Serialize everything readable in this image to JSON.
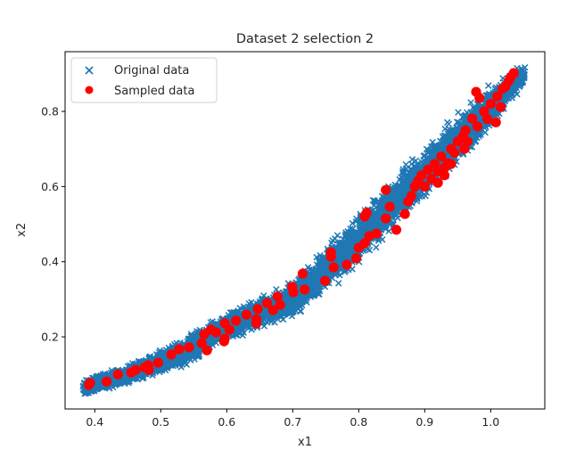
{
  "chart_data": {
    "type": "scatter",
    "title": "Dataset 2 selection 2",
    "xlabel": "x1",
    "ylabel": "x2",
    "xlim": [
      0.355,
      1.082
    ],
    "ylim": [
      0.008,
      0.959
    ],
    "x_ticks": [
      0.4,
      0.5,
      0.6,
      0.7,
      0.8,
      0.9,
      1.0
    ],
    "x_tick_labels": [
      "0.4",
      "0.5",
      "0.6",
      "0.7",
      "0.8",
      "0.9",
      "1.0"
    ],
    "y_ticks": [
      0.2,
      0.4,
      0.6,
      0.8
    ],
    "y_tick_labels": [
      "0.2",
      "0.4",
      "0.6",
      "0.8"
    ],
    "grid": false,
    "legend": {
      "position": "upper left",
      "entries": [
        {
          "label": "Original data",
          "marker": "x",
          "color": "#1f77b4"
        },
        {
          "label": "Sampled data",
          "marker": "o",
          "color": "#ff0000"
        }
      ]
    },
    "series": [
      {
        "name": "Original data",
        "marker": "x",
        "color": "#1f77b4",
        "description": "Dense curved band of thousands of points from x1≈0.38 to x1≈1.055; band center follows approximately these points",
        "band_center": [
          {
            "x1": 0.385,
            "x2": 0.065
          },
          {
            "x1": 0.45,
            "x2": 0.1
          },
          {
            "x1": 0.53,
            "x2": 0.153
          },
          {
            "x1": 0.6,
            "x2": 0.228
          },
          {
            "x1": 0.7,
            "x2": 0.3
          },
          {
            "x1": 0.8,
            "x2": 0.46
          },
          {
            "x1": 0.9,
            "x2": 0.64
          },
          {
            "x1": 1.0,
            "x2": 0.81
          },
          {
            "x1": 1.05,
            "x2": 0.9
          }
        ],
        "band_halfwidth_x2": [
          0.024,
          0.03,
          0.044,
          0.04,
          0.056,
          0.077,
          0.08,
          0.071,
          0.03
        ]
      },
      {
        "name": "Sampled data",
        "marker": "o",
        "color": "#ff0000",
        "points": [
          [
            0.393,
            0.077
          ],
          [
            0.391,
            0.072
          ],
          [
            0.418,
            0.081
          ],
          [
            0.435,
            0.1
          ],
          [
            0.455,
            0.105
          ],
          [
            0.462,
            0.112
          ],
          [
            0.476,
            0.119
          ],
          [
            0.482,
            0.112
          ],
          [
            0.481,
            0.124
          ],
          [
            0.496,
            0.131
          ],
          [
            0.516,
            0.153
          ],
          [
            0.528,
            0.167
          ],
          [
            0.543,
            0.172
          ],
          [
            0.562,
            0.183
          ],
          [
            0.57,
            0.164
          ],
          [
            0.566,
            0.207
          ],
          [
            0.576,
            0.219
          ],
          [
            0.584,
            0.212
          ],
          [
            0.596,
            0.188
          ],
          [
            0.597,
            0.195
          ],
          [
            0.597,
            0.236
          ],
          [
            0.604,
            0.219
          ],
          [
            0.614,
            0.243
          ],
          [
            0.63,
            0.259
          ],
          [
            0.645,
            0.247
          ],
          [
            0.645,
            0.236
          ],
          [
            0.647,
            0.274
          ],
          [
            0.661,
            0.29
          ],
          [
            0.67,
            0.271
          ],
          [
            0.677,
            0.307
          ],
          [
            0.681,
            0.285
          ],
          [
            0.699,
            0.333
          ],
          [
            0.701,
            0.319
          ],
          [
            0.715,
            0.368
          ],
          [
            0.718,
            0.326
          ],
          [
            0.749,
            0.349
          ],
          [
            0.758,
            0.425
          ],
          [
            0.758,
            0.413
          ],
          [
            0.762,
            0.385
          ],
          [
            0.782,
            0.392
          ],
          [
            0.796,
            0.409
          ],
          [
            0.8,
            0.437
          ],
          [
            0.809,
            0.449
          ],
          [
            0.816,
            0.468
          ],
          [
            0.809,
            0.52
          ],
          [
            0.812,
            0.53
          ],
          [
            0.827,
            0.475
          ],
          [
            0.841,
            0.591
          ],
          [
            0.847,
            0.546
          ],
          [
            0.841,
            0.515
          ],
          [
            0.857,
            0.485
          ],
          [
            0.87,
            0.527
          ],
          [
            0.875,
            0.56
          ],
          [
            0.88,
            0.575
          ],
          [
            0.885,
            0.6
          ],
          [
            0.89,
            0.615
          ],
          [
            0.895,
            0.63
          ],
          [
            0.9,
            0.6
          ],
          [
            0.905,
            0.645
          ],
          [
            0.91,
            0.62
          ],
          [
            0.915,
            0.66
          ],
          [
            0.92,
            0.64
          ],
          [
            0.925,
            0.68
          ],
          [
            0.93,
            0.65
          ],
          [
            0.935,
            0.662
          ],
          [
            0.94,
            0.7
          ],
          [
            0.945,
            0.69
          ],
          [
            0.95,
            0.72
          ],
          [
            0.958,
            0.734
          ],
          [
            0.962,
            0.75
          ],
          [
            0.972,
            0.781
          ],
          [
            0.978,
            0.852
          ],
          [
            0.983,
            0.836
          ],
          [
            0.99,
            0.8
          ],
          [
            0.995,
            0.78
          ],
          [
            1.0,
            0.82
          ],
          [
            1.008,
            0.771
          ],
          [
            1.01,
            0.84
          ],
          [
            1.015,
            0.812
          ],
          [
            1.018,
            0.86
          ],
          [
            1.022,
            0.866
          ],
          [
            1.027,
            0.88
          ],
          [
            1.03,
            0.89
          ],
          [
            1.035,
            0.902
          ],
          [
            0.92,
            0.61
          ],
          [
            0.93,
            0.63
          ],
          [
            0.94,
            0.66
          ],
          [
            0.96,
            0.7
          ],
          [
            0.965,
            0.72
          ],
          [
            0.98,
            0.76
          ]
        ]
      }
    ]
  }
}
